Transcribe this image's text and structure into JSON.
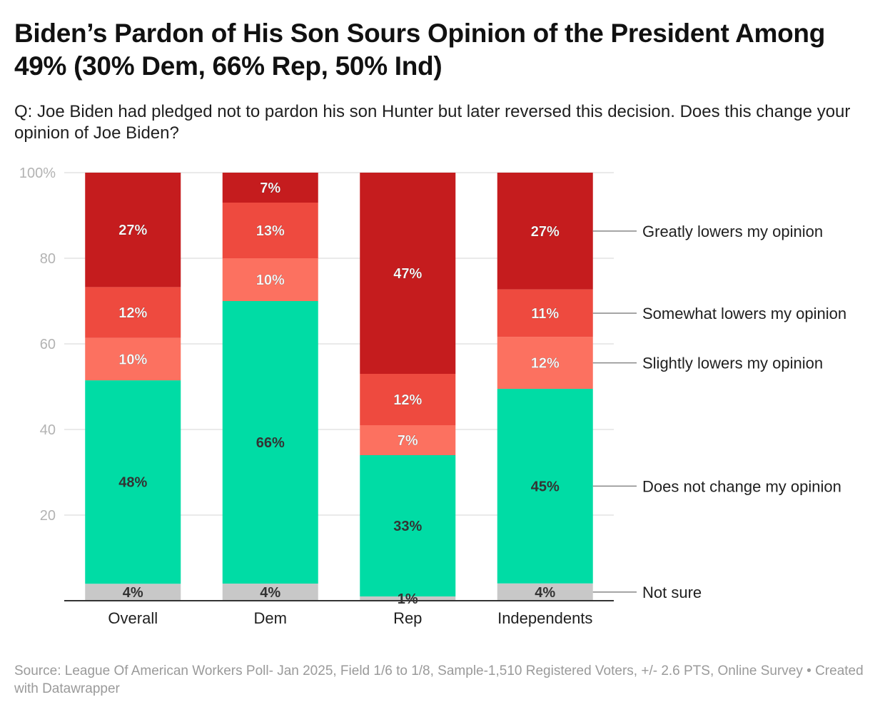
{
  "title": "Biden’s Pardon of His Son Sours Opinion of the President Among 49% (30% Dem, 66% Rep, 50% Ind)",
  "subtitle": "Q: Joe Biden had pledged not to pardon his son Hunter but later reversed this decision. Does this change your opinion of Joe Biden?",
  "footer": {
    "source": "Source: League Of American Workers Poll- Jan 2025, Field 1/6 to 1/8, Sample-1,510 Registered Voters, +/- 2.6 PTS, Online Survey",
    "separator": " • ",
    "credit": "Created with Datawrapper"
  },
  "chart_data": {
    "type": "bar",
    "stacked": true,
    "categories": [
      "Overall",
      "Dem",
      "Rep",
      "Independents"
    ],
    "series": [
      {
        "name": "Not sure",
        "color": "#c8c8c8",
        "values": [
          4,
          4,
          1,
          4
        ],
        "labels": [
          "4%",
          "4%",
          "1%",
          "4%"
        ]
      },
      {
        "name": "Does not change my opinion",
        "color": "#00dca5",
        "values": [
          48,
          66,
          33,
          45
        ],
        "labels": [
          "48%",
          "66%",
          "33%",
          "45%"
        ]
      },
      {
        "name": "Slightly lowers my opinion",
        "color": "#fc7160",
        "values": [
          10,
          10,
          7,
          12
        ],
        "labels": [
          "10%",
          "10%",
          "7%",
          "12%"
        ]
      },
      {
        "name": "Somewhat lowers my opinion",
        "color": "#ee4a3f",
        "values": [
          12,
          13,
          12,
          11
        ],
        "labels": [
          "12%",
          "13%",
          "12%",
          "11%"
        ]
      },
      {
        "name": "Greatly lowers my opinion",
        "color": "#c51c1e",
        "values": [
          27,
          7,
          47,
          27
        ],
        "labels": [
          "27%",
          "7%",
          "47%",
          "27%"
        ]
      }
    ],
    "legend_labels_at_category": "Independents",
    "ylim": [
      0,
      100
    ],
    "yticks": [
      20,
      40,
      60,
      80,
      100
    ],
    "ytick_labels": [
      "20",
      "40",
      "60",
      "80",
      "100%"
    ],
    "grid": true,
    "xlabel": "",
    "ylabel": ""
  }
}
